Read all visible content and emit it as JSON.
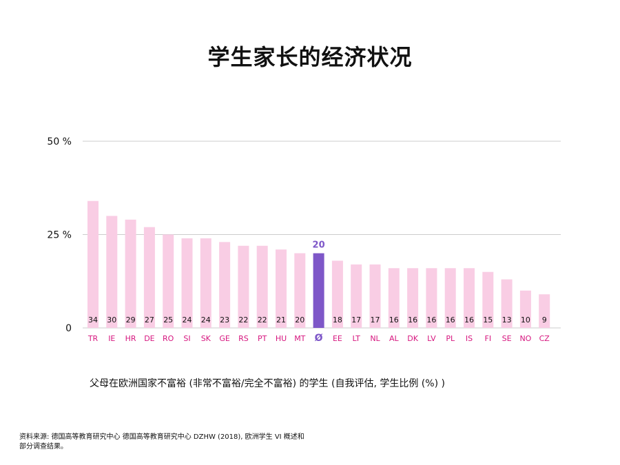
{
  "title": "学生家长的经济状况",
  "caption": "父母在欧洲国家不富裕 (非常不富裕/完全不富裕) 的学生 (自我评估, 学生比例 (%) )",
  "source": "资料来源: 德国高等教育研究中心 德国高等教育研究中心 DZHW (2018), 欧洲学生 VI 概述和部分调查结果。",
  "colors": {
    "bar": "#f9cde4",
    "highlight_bar": "#7e57c8",
    "country_label": "#d6157e",
    "highlight_label": "#7e57c8",
    "grid": "#cccccc",
    "text": "#111111"
  },
  "chart_data": {
    "type": "bar",
    "categories": [
      "TR",
      "IE",
      "HR",
      "DE",
      "RO",
      "SI",
      "SK",
      "GE",
      "RS",
      "PT",
      "HU",
      "MT",
      "Ø",
      "EE",
      "LT",
      "NL",
      "AL",
      "DK",
      "LV",
      "PL",
      "IS",
      "FI",
      "SE",
      "NO",
      "CZ"
    ],
    "values": [
      34,
      30,
      29,
      27,
      25,
      24,
      24,
      23,
      22,
      22,
      21,
      20,
      20,
      18,
      17,
      17,
      16,
      16,
      16,
      16,
      16,
      15,
      13,
      10,
      9
    ],
    "value_labels": [
      "34",
      "30",
      "29",
      "27",
      "25",
      "24",
      "24",
      "23",
      "22",
      "22",
      "21",
      "20",
      "20",
      "18",
      "17",
      "17",
      "16",
      "16",
      "16",
      "16",
      "16",
      "15",
      "13",
      "10",
      "9"
    ],
    "highlight_index": 12,
    "ylim": [
      0,
      50
    ],
    "yticks": [
      0,
      25,
      50
    ],
    "ytick_labels": [
      "0",
      "25 %",
      "50 %"
    ],
    "grid": true
  }
}
